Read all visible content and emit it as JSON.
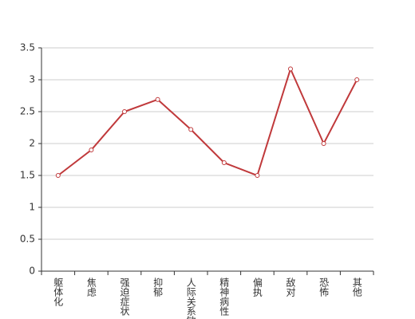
{
  "chart_data": {
    "type": "line",
    "categories": [
      "躯体化",
      "焦虑",
      "强迫症状",
      "抑郁",
      "人际关系敏感",
      "精神病性",
      "偏执",
      "敌对",
      "恐怖",
      "其他"
    ],
    "series": [
      {
        "color": "#c0393b",
        "values": [
          1.5,
          1.9,
          2.5,
          2.69,
          2.22,
          1.7,
          1.5,
          3.17,
          2.0,
          3.0
        ]
      }
    ],
    "ylim": [
      0,
      3.5
    ],
    "yticks": [
      0,
      0.5,
      1,
      1.5,
      2,
      2.5,
      3,
      3.5
    ],
    "grid": true
  }
}
